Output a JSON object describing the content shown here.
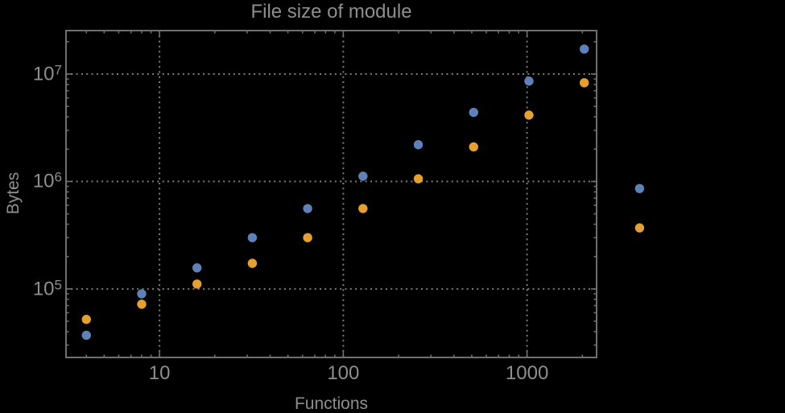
{
  "chart_data": {
    "type": "scatter",
    "title": "File size of module",
    "xlabel": "Functions",
    "ylabel": "Bytes",
    "x_scale": "log",
    "y_scale": "log",
    "grid": "dotted-at-decades",
    "legend": "none",
    "x": [
      4,
      8,
      16,
      32,
      64,
      128,
      256,
      512,
      1024,
      2048,
      4096
    ],
    "series": [
      {
        "name": "blue",
        "color": "#5e82b8",
        "values": [
          37000,
          90000,
          157000,
          300000,
          560000,
          1120000,
          2200000,
          4400000,
          8600000,
          17100000,
          860000
        ]
      },
      {
        "name": "orange",
        "color": "#e6a02f",
        "values": [
          52000,
          72000,
          111000,
          173000,
          300000,
          560000,
          1060000,
          2100000,
          4150000,
          8300000,
          370000
        ]
      }
    ],
    "x_domain": [
      3.1,
      2390
    ],
    "y_domain": [
      23000,
      25400000
    ],
    "x_major_ticks": [
      {
        "label": "10",
        "value": 10
      },
      {
        "label": "100",
        "value": 100
      },
      {
        "label": "1000",
        "value": 1000
      }
    ],
    "y_major_ticks": [
      {
        "base": "10",
        "exp": "5",
        "value": 100000
      },
      {
        "base": "10",
        "exp": "6",
        "value": 1000000
      },
      {
        "base": "10",
        "exp": "7",
        "value": 10000000
      }
    ]
  },
  "colors": {
    "background": "#000000",
    "frame": "#6f6f6f",
    "grid": "#7d7d7d",
    "text": "#8e8e8e",
    "series_blue": "#5e82b8",
    "series_orange": "#e6a02f"
  }
}
